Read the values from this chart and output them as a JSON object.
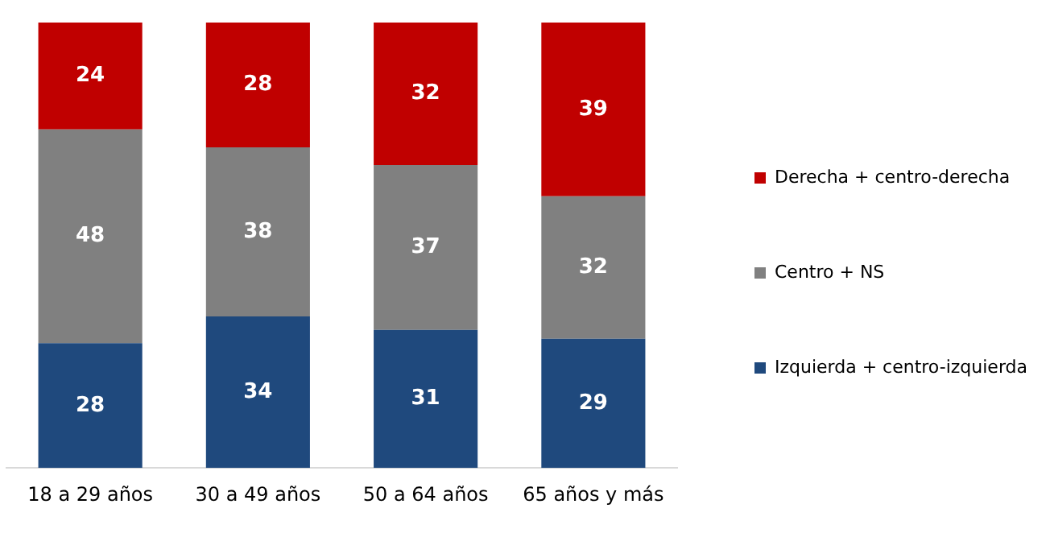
{
  "chart_data": {
    "type": "bar",
    "stacked": true,
    "categories": [
      "18 a 29 años",
      "30 a 49 años",
      "50 a 64 años",
      "65 años y más"
    ],
    "series": [
      {
        "name": "Izquierda + centro-izquierda",
        "color": "#1f497d",
        "values": [
          28,
          34,
          31,
          29
        ]
      },
      {
        "name": "Centro + NS",
        "color": "#808080",
        "values": [
          48,
          38,
          37,
          32
        ]
      },
      {
        "name": "Derecha + centro-derecha",
        "color": "#c00000",
        "values": [
          24,
          28,
          32,
          39
        ]
      }
    ],
    "data_labels": true,
    "legend": "right",
    "grid": false
  }
}
